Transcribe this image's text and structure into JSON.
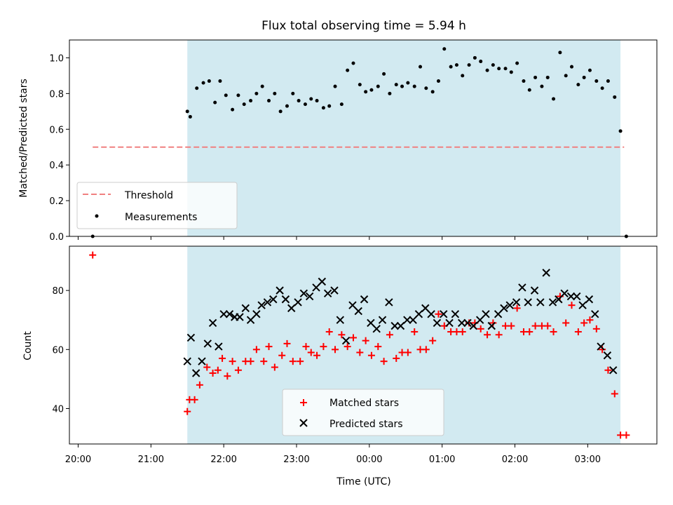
{
  "chart_data": {
    "type": "scatter",
    "title": "Flux total observing time = 5.94 h",
    "colors": {
      "span": "#add8e6",
      "threshold": "#f08080",
      "measurements": "#000000",
      "matched": "#ff0000",
      "predicted": "#000000"
    },
    "xlabel": "Time (UTC)",
    "x_ticks": [
      "20:00",
      "21:00",
      "22:00",
      "23:00",
      "00:00",
      "01:00",
      "02:00",
      "03:00"
    ],
    "x_range_hours": [
      19.88,
      27.95
    ],
    "observing_span_hours": [
      21.5,
      27.45
    ],
    "top_panel": {
      "ylabel": "Matched/Predicted stars",
      "ylim": [
        0,
        1.1
      ],
      "y_ticks": [
        "0.0",
        "0.2",
        "0.4",
        "0.6",
        "0.8",
        "1.0"
      ],
      "threshold_value": 0.5,
      "threshold_range_hours": [
        20.2,
        27.5
      ],
      "legend_position": "lower-left",
      "legend": [
        "Threshold",
        "Measurements"
      ],
      "measurements": [
        [
          20.2,
          0.0
        ],
        [
          21.5,
          0.7
        ],
        [
          21.54,
          0.67
        ],
        [
          21.63,
          0.83
        ],
        [
          21.72,
          0.86
        ],
        [
          21.8,
          0.87
        ],
        [
          21.88,
          0.75
        ],
        [
          21.95,
          0.87
        ],
        [
          22.03,
          0.79
        ],
        [
          22.12,
          0.71
        ],
        [
          22.2,
          0.79
        ],
        [
          22.28,
          0.74
        ],
        [
          22.37,
          0.76
        ],
        [
          22.45,
          0.8
        ],
        [
          22.53,
          0.84
        ],
        [
          22.62,
          0.76
        ],
        [
          22.7,
          0.8
        ],
        [
          22.78,
          0.7
        ],
        [
          22.87,
          0.73
        ],
        [
          22.95,
          0.8
        ],
        [
          23.03,
          0.76
        ],
        [
          23.12,
          0.74
        ],
        [
          23.2,
          0.77
        ],
        [
          23.28,
          0.76
        ],
        [
          23.37,
          0.72
        ],
        [
          23.45,
          0.73
        ],
        [
          23.53,
          0.84
        ],
        [
          23.62,
          0.74
        ],
        [
          23.7,
          0.93
        ],
        [
          23.78,
          0.97
        ],
        [
          23.87,
          0.85
        ],
        [
          23.95,
          0.81
        ],
        [
          24.03,
          0.82
        ],
        [
          24.12,
          0.84
        ],
        [
          24.2,
          0.91
        ],
        [
          24.28,
          0.8
        ],
        [
          24.37,
          0.85
        ],
        [
          24.45,
          0.84
        ],
        [
          24.53,
          0.86
        ],
        [
          24.62,
          0.84
        ],
        [
          24.7,
          0.95
        ],
        [
          24.78,
          0.83
        ],
        [
          24.87,
          0.81
        ],
        [
          24.95,
          0.87
        ],
        [
          25.03,
          1.05
        ],
        [
          25.12,
          0.95
        ],
        [
          25.2,
          0.96
        ],
        [
          25.28,
          0.9
        ],
        [
          25.37,
          0.96
        ],
        [
          25.45,
          1.0
        ],
        [
          25.53,
          0.98
        ],
        [
          25.62,
          0.93
        ],
        [
          25.7,
          0.96
        ],
        [
          25.78,
          0.94
        ],
        [
          25.87,
          0.94
        ],
        [
          25.95,
          0.92
        ],
        [
          26.03,
          0.97
        ],
        [
          26.12,
          0.87
        ],
        [
          26.2,
          0.82
        ],
        [
          26.28,
          0.89
        ],
        [
          26.37,
          0.84
        ],
        [
          26.45,
          0.89
        ],
        [
          26.53,
          0.77
        ],
        [
          26.62,
          1.03
        ],
        [
          26.7,
          0.9
        ],
        [
          26.78,
          0.95
        ],
        [
          26.87,
          0.85
        ],
        [
          26.95,
          0.89
        ],
        [
          27.03,
          0.93
        ],
        [
          27.12,
          0.87
        ],
        [
          27.2,
          0.83
        ],
        [
          27.28,
          0.87
        ],
        [
          27.37,
          0.78
        ],
        [
          27.45,
          0.59
        ],
        [
          27.53,
          0.0
        ]
      ]
    },
    "bottom_panel": {
      "ylabel": "Count",
      "ylim": [
        28,
        95
      ],
      "y_ticks": [
        "40",
        "60",
        "80"
      ],
      "legend_position": "lower-center",
      "legend": [
        "Matched stars",
        "Predicted stars"
      ],
      "matched_stars": [
        [
          20.2,
          92
        ],
        [
          21.5,
          39
        ],
        [
          21.53,
          43
        ],
        [
          21.6,
          43
        ],
        [
          21.67,
          48
        ],
        [
          21.77,
          54
        ],
        [
          21.85,
          52
        ],
        [
          21.92,
          53
        ],
        [
          21.98,
          57
        ],
        [
          22.05,
          51
        ],
        [
          22.12,
          56
        ],
        [
          22.2,
          53
        ],
        [
          22.3,
          56
        ],
        [
          22.37,
          56
        ],
        [
          22.45,
          60
        ],
        [
          22.55,
          56
        ],
        [
          22.62,
          61
        ],
        [
          22.7,
          54
        ],
        [
          22.8,
          58
        ],
        [
          22.87,
          62
        ],
        [
          22.95,
          56
        ],
        [
          23.05,
          56
        ],
        [
          23.13,
          61
        ],
        [
          23.2,
          59
        ],
        [
          23.28,
          58
        ],
        [
          23.37,
          61
        ],
        [
          23.45,
          66
        ],
        [
          23.53,
          60
        ],
        [
          23.62,
          65
        ],
        [
          23.7,
          61
        ],
        [
          23.78,
          64
        ],
        [
          23.87,
          59
        ],
        [
          23.95,
          63
        ],
        [
          24.03,
          58
        ],
        [
          24.12,
          61
        ],
        [
          24.2,
          56
        ],
        [
          24.28,
          65
        ],
        [
          24.37,
          57
        ],
        [
          24.45,
          59
        ],
        [
          24.53,
          59
        ],
        [
          24.62,
          66
        ],
        [
          24.7,
          60
        ],
        [
          24.78,
          60
        ],
        [
          24.87,
          63
        ],
        [
          24.95,
          72
        ],
        [
          25.03,
          68
        ],
        [
          25.12,
          66
        ],
        [
          25.2,
          66
        ],
        [
          25.28,
          66
        ],
        [
          25.37,
          69
        ],
        [
          25.45,
          69
        ],
        [
          25.53,
          67
        ],
        [
          25.62,
          65
        ],
        [
          25.7,
          69
        ],
        [
          25.78,
          65
        ],
        [
          25.87,
          68
        ],
        [
          25.95,
          68
        ],
        [
          26.03,
          74
        ],
        [
          26.12,
          66
        ],
        [
          26.2,
          66
        ],
        [
          26.28,
          68
        ],
        [
          26.37,
          68
        ],
        [
          26.45,
          68
        ],
        [
          26.53,
          66
        ],
        [
          26.62,
          78
        ],
        [
          26.7,
          69
        ],
        [
          26.78,
          75
        ],
        [
          26.87,
          66
        ],
        [
          26.95,
          69
        ],
        [
          27.03,
          70
        ],
        [
          27.12,
          67
        ],
        [
          27.2,
          60
        ],
        [
          27.28,
          53
        ],
        [
          27.37,
          45
        ],
        [
          27.45,
          31
        ],
        [
          27.53,
          31
        ]
      ],
      "predicted_stars": [
        [
          21.5,
          56
        ],
        [
          21.55,
          64
        ],
        [
          21.62,
          52
        ],
        [
          21.7,
          56
        ],
        [
          21.78,
          62
        ],
        [
          21.85,
          69
        ],
        [
          21.93,
          61
        ],
        [
          22.0,
          72
        ],
        [
          22.08,
          72
        ],
        [
          22.15,
          71
        ],
        [
          22.22,
          71
        ],
        [
          22.3,
          74
        ],
        [
          22.37,
          70
        ],
        [
          22.45,
          72
        ],
        [
          22.52,
          75
        ],
        [
          22.6,
          76
        ],
        [
          22.68,
          77
        ],
        [
          22.77,
          80
        ],
        [
          22.85,
          77
        ],
        [
          22.93,
          74
        ],
        [
          23.02,
          76
        ],
        [
          23.1,
          79
        ],
        [
          23.18,
          78
        ],
        [
          23.27,
          81
        ],
        [
          23.35,
          83
        ],
        [
          23.43,
          79
        ],
        [
          23.52,
          80
        ],
        [
          23.6,
          70
        ],
        [
          23.68,
          63
        ],
        [
          23.77,
          75
        ],
        [
          23.85,
          73
        ],
        [
          23.93,
          77
        ],
        [
          24.02,
          69
        ],
        [
          24.1,
          67
        ],
        [
          24.18,
          70
        ],
        [
          24.27,
          76
        ],
        [
          24.35,
          68
        ],
        [
          24.43,
          68
        ],
        [
          24.52,
          70
        ],
        [
          24.6,
          70
        ],
        [
          24.68,
          72
        ],
        [
          24.77,
          74
        ],
        [
          24.85,
          72
        ],
        [
          24.93,
          69
        ],
        [
          25.02,
          72
        ],
        [
          25.1,
          69
        ],
        [
          25.18,
          72
        ],
        [
          25.27,
          69
        ],
        [
          25.35,
          69
        ],
        [
          25.43,
          68
        ],
        [
          25.52,
          70
        ],
        [
          25.6,
          72
        ],
        [
          25.68,
          68
        ],
        [
          25.77,
          72
        ],
        [
          25.85,
          74
        ],
        [
          25.93,
          75
        ],
        [
          26.02,
          76
        ],
        [
          26.1,
          81
        ],
        [
          26.18,
          76
        ],
        [
          26.27,
          80
        ],
        [
          26.35,
          76
        ],
        [
          26.43,
          86
        ],
        [
          26.52,
          76
        ],
        [
          26.6,
          77
        ],
        [
          26.68,
          79
        ],
        [
          26.77,
          78
        ],
        [
          26.85,
          78
        ],
        [
          26.93,
          75
        ],
        [
          27.02,
          77
        ],
        [
          27.1,
          72
        ],
        [
          27.18,
          61
        ],
        [
          27.27,
          58
        ],
        [
          27.35,
          53
        ]
      ]
    }
  }
}
